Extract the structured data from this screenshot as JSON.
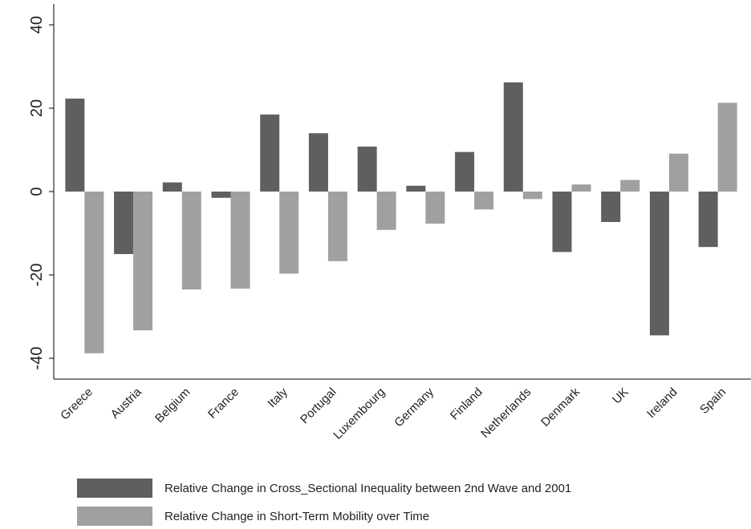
{
  "chart_data": {
    "type": "bar",
    "categories": [
      "Greece",
      "Austria",
      "Belgium",
      "France",
      "Italy",
      "Portugal",
      "Luxembourg",
      "Germany",
      "Finland",
      "Netherlands",
      "Denmark",
      "UK",
      "Ireland",
      "Spain"
    ],
    "series": [
      {
        "name": "Relative Change in Cross_Sectional Inequality between 2nd Wave and 2001",
        "color": "#5f5f5f",
        "values": [
          22.3,
          -15,
          2.2,
          -1.5,
          18.5,
          14,
          10.8,
          1.4,
          9.5,
          26.2,
          -14.5,
          -7.3,
          -34.5,
          -13.3
        ]
      },
      {
        "name": "Relative Change in Short-Term Mobility over Time",
        "color": "#a0a0a0",
        "values": [
          -38.8,
          -33.3,
          -23.5,
          -23.3,
          -19.7,
          -16.7,
          -9.2,
          -7.7,
          -4.3,
          -1.8,
          1.7,
          2.8,
          9.1,
          21.3
        ]
      }
    ],
    "ylim": [
      -45,
      45
    ],
    "yticks": [
      -40,
      -20,
      0,
      20,
      40
    ],
    "grid": false,
    "legend": "bottom"
  }
}
